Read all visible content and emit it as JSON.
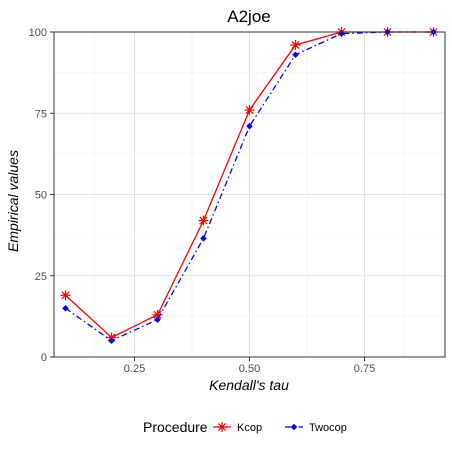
{
  "chart_data": {
    "type": "line",
    "title": "A2joe",
    "xlabel": "Kendall's tau",
    "ylabel": "Empirical values",
    "x": [
      0.1,
      0.2,
      0.3,
      0.4,
      0.5,
      0.6,
      0.7,
      0.8,
      0.9
    ],
    "xlim": [
      0.075,
      0.925
    ],
    "ylim": [
      0,
      100
    ],
    "xticks": [
      0.25,
      0.5,
      0.75
    ],
    "xtick_labels": [
      "0.25",
      "0.50",
      "0.75"
    ],
    "yticks": [
      0,
      25,
      50,
      75,
      100
    ],
    "ytick_labels": [
      "0",
      "25",
      "50",
      "75",
      "100"
    ],
    "grid": true,
    "legend_title": "Procedure",
    "legend_position": "bottom",
    "series": [
      {
        "name": "Kcop",
        "color": "#ff0000",
        "line_style": "solid",
        "marker": "asterisk",
        "values": [
          19,
          6,
          13,
          42,
          76,
          96,
          100,
          100,
          100
        ]
      },
      {
        "name": "Twocop",
        "color": "#0000ff",
        "line_style": "dashdot",
        "marker": "diamond",
        "values": [
          15,
          5,
          11.5,
          36.5,
          71,
          93,
          99.5,
          100,
          100
        ]
      }
    ]
  }
}
